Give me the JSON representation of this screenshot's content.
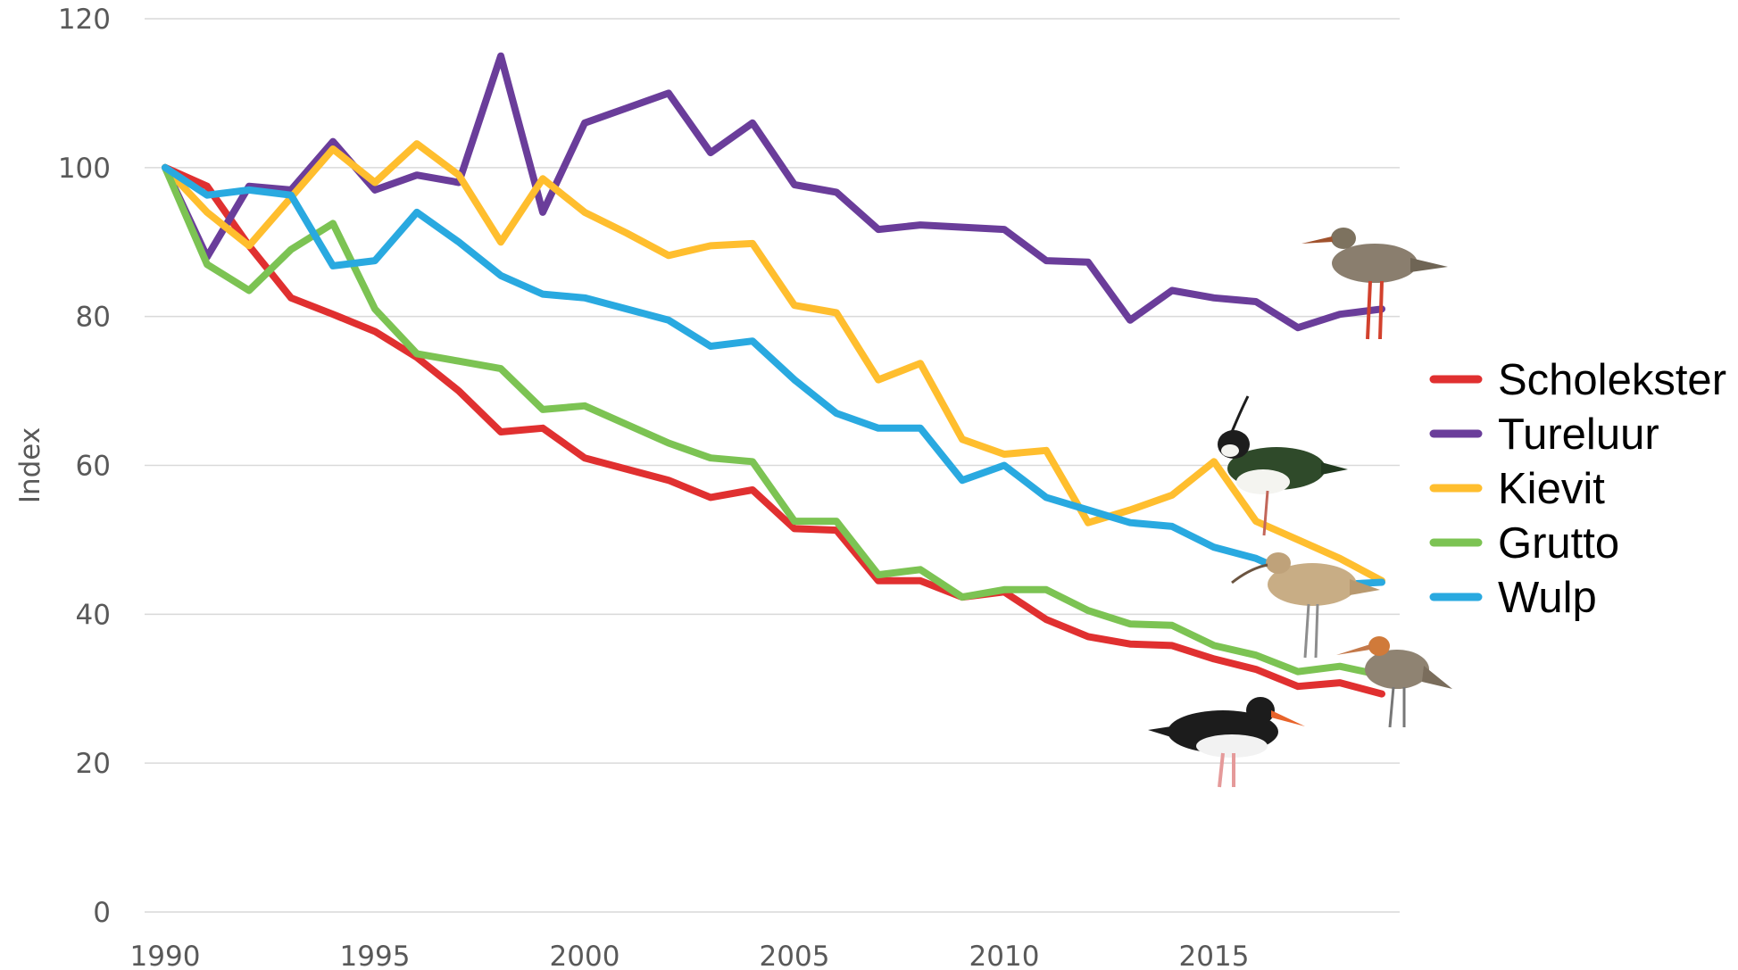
{
  "chart_data": {
    "type": "line",
    "title": "",
    "xlabel": "",
    "ylabel": "Index",
    "xlim": [
      1990,
      2019
    ],
    "ylim": [
      0,
      120
    ],
    "x_ticks": [
      1990,
      1995,
      2000,
      2005,
      2010,
      2015
    ],
    "y_ticks": [
      0,
      20,
      40,
      60,
      80,
      100,
      120
    ],
    "grid": "horizontal",
    "legend_position": "right",
    "x": [
      1990,
      1991,
      1992,
      1993,
      1994,
      1995,
      1996,
      1997,
      1998,
      1999,
      2000,
      2001,
      2002,
      2003,
      2004,
      2005,
      2006,
      2007,
      2008,
      2009,
      2010,
      2011,
      2012,
      2013,
      2014,
      2015,
      2016,
      2017,
      2018,
      2019
    ],
    "series": [
      {
        "name": "Scholekster",
        "color": "#e03030",
        "bird_icon": "oystercatcher-icon",
        "values": [
          100,
          97.5,
          89.5,
          82.5,
          80.3,
          78,
          74.5,
          70,
          64.5,
          65,
          61,
          59.5,
          58,
          55.7,
          56.7,
          51.5,
          51.3,
          44.5,
          44.5,
          42.3,
          43,
          39.3,
          37,
          36,
          35.8,
          34,
          32.6,
          30.3,
          30.8,
          29.3
        ]
      },
      {
        "name": "Tureluur",
        "color": "#6a3d9a",
        "bird_icon": "redshank-icon",
        "values": [
          100,
          88,
          97.5,
          97,
          103.5,
          97,
          99,
          98,
          115,
          94,
          106,
          108,
          110,
          102,
          106,
          97.7,
          96.7,
          91.7,
          92.3,
          92,
          91.7,
          87.5,
          87.3,
          79.5,
          83.5,
          82.5,
          82,
          78.5,
          80.3,
          81
        ]
      },
      {
        "name": "Kievit",
        "color": "#ffbe2e",
        "bird_icon": "lapwing-icon",
        "values": [
          100,
          94,
          89.5,
          96,
          102.5,
          98,
          103.2,
          99,
          90,
          98.5,
          94,
          91.2,
          88.2,
          89.5,
          89.8,
          81.5,
          80.5,
          71.5,
          73.7,
          63.5,
          61.5,
          62,
          52.3,
          54,
          56,
          60.5,
          52.5,
          50,
          47.5,
          44.5
        ]
      },
      {
        "name": "Grutto",
        "color": "#7cc353",
        "bird_icon": "godwit-icon",
        "values": [
          100,
          87,
          83.5,
          89,
          92.5,
          81,
          75,
          74,
          73,
          67.5,
          68,
          65.5,
          63,
          61,
          60.5,
          52.5,
          52.5,
          45.3,
          46,
          42.3,
          43.3,
          43.3,
          40.5,
          38.7,
          38.5,
          35.8,
          34.5,
          32.3,
          33,
          31.8
        ]
      },
      {
        "name": "Wulp",
        "color": "#29a9e0",
        "bird_icon": "curlew-icon",
        "values": [
          100,
          96.3,
          97,
          96.3,
          86.8,
          87.5,
          94,
          90,
          85.5,
          83,
          82.5,
          81,
          79.5,
          76,
          76.7,
          71.5,
          67,
          65,
          65,
          58,
          60,
          55.7,
          54,
          52.3,
          51.8,
          49,
          47.5,
          45,
          44,
          44.3
        ]
      }
    ]
  }
}
